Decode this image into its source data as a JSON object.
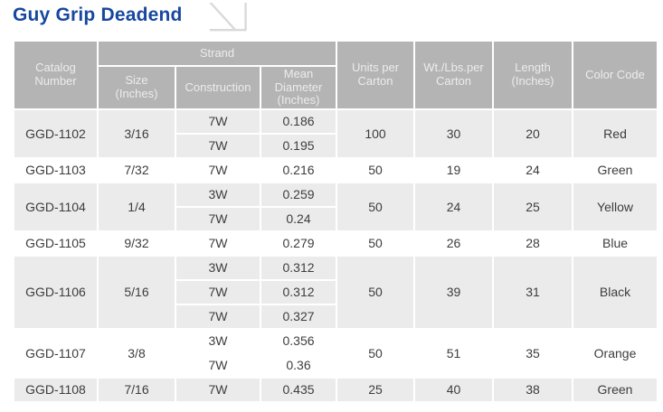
{
  "page": {
    "title": "Guy Grip Deadend"
  },
  "icons": {
    "title_arrow": "diagonal-arrow-down-right"
  },
  "colors": {
    "title": "#17479e",
    "header_bg": "#b4b4b4",
    "header_text": "#ececec",
    "row_alt_bg": "#ebebeb",
    "cell_text": "#3d3d3d",
    "icon": "#d9d9d9"
  },
  "table": {
    "headers": {
      "catalog": "Catalog\nNumber",
      "strand": "Strand",
      "size": "Size\n(Inches)",
      "construction": "Construction",
      "diameter": "Mean\nDiameter\n(Inches)",
      "units": "Units per\nCarton",
      "weight": "Wt./Lbs.per\nCarton",
      "length": "Length\n(Inches)",
      "color": "Color Code"
    },
    "groups": [
      {
        "catalog": "GGD-1102",
        "size": "3/16",
        "strands": [
          {
            "construction": "7W",
            "diameter": "0.186"
          },
          {
            "construction": "7W",
            "diameter": "0.195"
          }
        ],
        "units": "100",
        "weight": "30",
        "length": "20",
        "color": "Red"
      },
      {
        "catalog": "GGD-1103",
        "size": "7/32",
        "strands": [
          {
            "construction": "7W",
            "diameter": "0.216"
          }
        ],
        "units": "50",
        "weight": "19",
        "length": "24",
        "color": "Green"
      },
      {
        "catalog": "GGD-1104",
        "size": "1/4",
        "strands": [
          {
            "construction": "3W",
            "diameter": "0.259"
          },
          {
            "construction": "7W",
            "diameter": "0.24"
          }
        ],
        "units": "50",
        "weight": "24",
        "length": "25",
        "color": "Yellow"
      },
      {
        "catalog": "GGD-1105",
        "size": "9/32",
        "strands": [
          {
            "construction": "7W",
            "diameter": "0.279"
          }
        ],
        "units": "50",
        "weight": "26",
        "length": "28",
        "color": "Blue"
      },
      {
        "catalog": "GGD-1106",
        "size": "5/16",
        "strands": [
          {
            "construction": "3W",
            "diameter": "0.312"
          },
          {
            "construction": "7W",
            "diameter": "0.312"
          },
          {
            "construction": "7W",
            "diameter": "0.327"
          }
        ],
        "units": "50",
        "weight": "39",
        "length": "31",
        "color": "Black"
      },
      {
        "catalog": "GGD-1107",
        "size": "3/8",
        "strands": [
          {
            "construction": "3W",
            "diameter": "0.356"
          },
          {
            "construction": "7W",
            "diameter": "0.36"
          }
        ],
        "units": "50",
        "weight": "51",
        "length": "35",
        "color": "Orange"
      },
      {
        "catalog": "GGD-1108",
        "size": "7/16",
        "strands": [
          {
            "construction": "7W",
            "diameter": "0.435"
          }
        ],
        "units": "25",
        "weight": "40",
        "length": "38",
        "color": "Green"
      }
    ]
  }
}
